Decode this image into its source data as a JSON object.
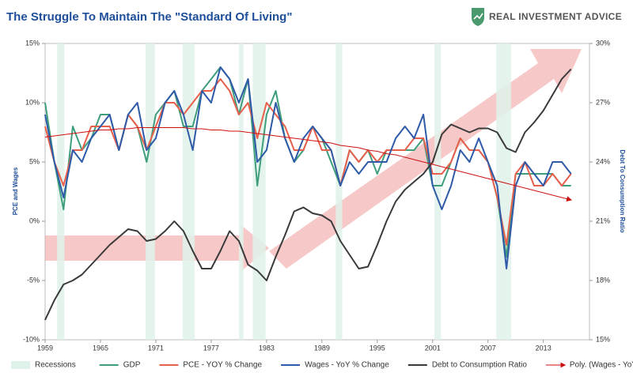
{
  "chart_data": {
    "type": "line",
    "title": "The Struggle To Maintain The \"Standard Of Living\"",
    "brand": "REAL INVESTMENT ADVICE",
    "ylabel": "PCE and Wages",
    "y2label": "Debt To Consumption Ratio",
    "xlim": [
      1959,
      2018
    ],
    "xticks": [
      1959,
      1965,
      1971,
      1977,
      1983,
      1989,
      1995,
      2001,
      2007,
      2013
    ],
    "ylim": [
      -10,
      15
    ],
    "yticks": [
      {
        "value": -10,
        "label": "-10%"
      },
      {
        "value": -5,
        "label": "-5%"
      },
      {
        "value": 0,
        "label": "0%"
      },
      {
        "value": 5,
        "label": "5%"
      },
      {
        "value": 10,
        "label": "10%"
      },
      {
        "value": 15,
        "label": "15%"
      }
    ],
    "y2lim": [
      15,
      30
    ],
    "y2ticks": [
      {
        "value": 15,
        "label": "15%"
      },
      {
        "value": 18,
        "label": "18%"
      },
      {
        "value": 21,
        "label": "21%"
      },
      {
        "value": 24,
        "label": "24%"
      },
      {
        "value": 27,
        "label": "27%"
      },
      {
        "value": 30,
        "label": "30%"
      }
    ],
    "grid": false,
    "recessions": {
      "name": "Recessions",
      "color": "#dff2ea",
      "periods": [
        [
          1960.3,
          1961.1
        ],
        [
          1969.9,
          1970.9
        ],
        [
          1973.9,
          1975.2
        ],
        [
          1980.0,
          1980.5
        ],
        [
          1981.5,
          1982.9
        ],
        [
          1990.5,
          1991.2
        ],
        [
          2001.2,
          2001.9
        ],
        [
          2007.9,
          2009.5
        ]
      ]
    },
    "x": [
      1959,
      1960,
      1961,
      1962,
      1963,
      1964,
      1965,
      1966,
      1967,
      1968,
      1969,
      1970,
      1971,
      1972,
      1973,
      1974,
      1975,
      1976,
      1977,
      1978,
      1979,
      1980,
      1981,
      1982,
      1983,
      1984,
      1985,
      1986,
      1987,
      1988,
      1989,
      1990,
      1991,
      1992,
      1993,
      1994,
      1995,
      1996,
      1997,
      1998,
      1999,
      2000,
      2001,
      2002,
      2003,
      2004,
      2005,
      2006,
      2007,
      2008,
      2009,
      2010,
      2011,
      2012,
      2013,
      2014,
      2015,
      2016
    ],
    "series": [
      {
        "name": "GDP",
        "color": "#3e9e7c",
        "values": [
          10,
          5,
          1,
          8,
          6,
          7,
          9,
          9,
          6,
          9,
          8,
          5,
          9,
          10,
          11,
          8,
          8,
          11,
          12,
          13,
          12,
          9,
          12,
          3,
          9,
          11,
          7,
          5,
          6,
          8,
          7,
          5,
          3,
          6,
          5,
          6,
          4,
          6,
          6,
          6,
          6,
          7,
          3,
          3,
          5,
          7,
          6,
          6,
          5,
          2,
          -3,
          4,
          4,
          4,
          4,
          4,
          3,
          3
        ]
      },
      {
        "name": "PCE - YOY % Change",
        "color": "#e8604c",
        "values": [
          8,
          5,
          3,
          6,
          6,
          8,
          8,
          8,
          6,
          9,
          8,
          6,
          8,
          10,
          10,
          9,
          10,
          11,
          11,
          12,
          11,
          9,
          10,
          7,
          10,
          9,
          8,
          6,
          6,
          8,
          6,
          6,
          3,
          6,
          5,
          6,
          5,
          6,
          6,
          6,
          7,
          7,
          4,
          4,
          5,
          7,
          6,
          6,
          5,
          2,
          -2,
          4,
          5,
          3,
          3,
          4,
          3,
          4
        ]
      },
      {
        "name": "Wages - YoY % Change",
        "color": "#2e5aa8",
        "values": [
          9,
          5,
          2,
          6,
          5,
          7,
          8,
          9,
          6,
          9,
          10,
          6,
          7,
          10,
          11,
          9,
          6,
          11,
          10,
          13,
          12,
          10,
          12,
          5,
          6,
          10,
          7,
          5,
          7,
          8,
          7,
          6,
          3,
          5,
          4,
          5,
          5,
          5,
          7,
          8,
          7,
          9,
          3,
          1,
          3,
          6,
          5,
          7,
          5,
          3,
          -4,
          3,
          5,
          4,
          3,
          5,
          5,
          4
        ]
      },
      {
        "name": "Debt to Consumption Ratio",
        "color": "#3a3a3a",
        "axis": "y2",
        "values": [
          16,
          17,
          17.8,
          18,
          18.3,
          18.8,
          19.3,
          19.8,
          20.2,
          20.6,
          20.5,
          20,
          20.1,
          20.5,
          21,
          20.5,
          19.5,
          18.6,
          18.6,
          19.5,
          20.5,
          20,
          18.8,
          18.5,
          18,
          19.2,
          20.3,
          21.5,
          21.7,
          21.4,
          21.3,
          21,
          20,
          19.3,
          18.6,
          18.7,
          19.8,
          21,
          22,
          22.6,
          23,
          23.4,
          24,
          25.4,
          25.9,
          25.7,
          25.5,
          25.7,
          25.7,
          25.5,
          24.7,
          24.5,
          25.5,
          26,
          26.6,
          27.4,
          28.2,
          28.7
        ]
      },
      {
        "name": "Poly. (Wages - YoY % Change)",
        "color": "#cc1111",
        "arrow": true,
        "values": [
          7.1,
          7.2,
          7.3,
          7.4,
          7.5,
          7.6,
          7.7,
          7.7,
          7.8,
          7.8,
          7.9,
          7.9,
          7.9,
          7.9,
          7.9,
          7.9,
          7.8,
          7.8,
          7.7,
          7.7,
          7.6,
          7.6,
          7.5,
          7.4,
          7.3,
          7.2,
          7.1,
          7.0,
          6.9,
          6.8,
          6.7,
          6.6,
          6.4,
          6.3,
          6.2,
          6.0,
          5.9,
          5.7,
          5.6,
          5.4,
          5.2,
          5.0,
          4.8,
          4.6,
          4.4,
          4.2,
          4.0,
          3.8,
          3.6,
          3.4,
          3.2,
          3.0,
          2.8,
          2.6,
          2.4,
          2.2,
          2.0,
          1.8
        ]
      }
    ]
  }
}
